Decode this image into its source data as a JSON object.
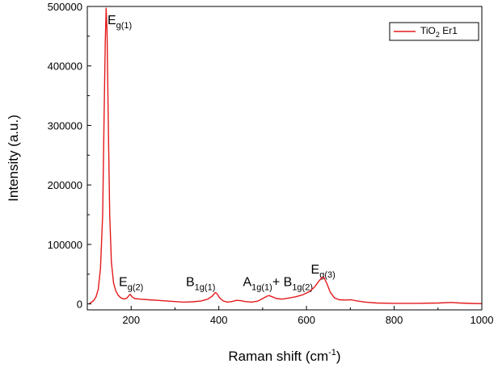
{
  "chart_data": {
    "type": "line",
    "title": "",
    "xlabel": {
      "main": "Raman shift (cm",
      "sup": "-1",
      "tail": ")"
    },
    "ylabel": "Intensity (a.u.)",
    "xlim": [
      100,
      1000
    ],
    "ylim": [
      -10000,
      500000
    ],
    "x_ticks": [
      200,
      400,
      600,
      800,
      1000
    ],
    "x_tick_labels": [
      "200",
      "400",
      "600",
      "800",
      "1000"
    ],
    "y_ticks": [
      0,
      100000,
      200000,
      300000,
      400000,
      500000
    ],
    "y_tick_labels": [
      "0",
      "100000",
      "200000",
      "300000",
      "400000",
      "500000"
    ],
    "legend": {
      "position": "top-right",
      "entries": [
        {
          "main": "TiO",
          "sub": "2",
          "tail": " Er1"
        }
      ]
    },
    "series": [
      {
        "name": "TiO2 Er1",
        "color": "#e41a1c",
        "points": [
          [
            105,
            1000
          ],
          [
            110,
            3000
          ],
          [
            115,
            6000
          ],
          [
            120,
            12000
          ],
          [
            125,
            25000
          ],
          [
            130,
            60000
          ],
          [
            135,
            150000
          ],
          [
            138,
            300000
          ],
          [
            141,
            440000
          ],
          [
            143,
            497000
          ],
          [
            145,
            460000
          ],
          [
            148,
            300000
          ],
          [
            151,
            150000
          ],
          [
            155,
            70000
          ],
          [
            160,
            35000
          ],
          [
            165,
            22000
          ],
          [
            170,
            15000
          ],
          [
            175,
            11000
          ],
          [
            180,
            9000
          ],
          [
            185,
            8500
          ],
          [
            190,
            9500
          ],
          [
            195,
            14000
          ],
          [
            198,
            16000
          ],
          [
            202,
            12000
          ],
          [
            208,
            9000
          ],
          [
            220,
            8000
          ],
          [
            240,
            7000
          ],
          [
            260,
            6000
          ],
          [
            280,
            5000
          ],
          [
            300,
            4000
          ],
          [
            320,
            3000
          ],
          [
            340,
            3500
          ],
          [
            360,
            5000
          ],
          [
            375,
            8000
          ],
          [
            385,
            13000
          ],
          [
            392,
            19000
          ],
          [
            396,
            17000
          ],
          [
            402,
            10000
          ],
          [
            410,
            5000
          ],
          [
            420,
            3000
          ],
          [
            430,
            4000
          ],
          [
            440,
            6000
          ],
          [
            450,
            5500
          ],
          [
            460,
            4000
          ],
          [
            475,
            3000
          ],
          [
            490,
            5000
          ],
          [
            500,
            9000
          ],
          [
            510,
            13000
          ],
          [
            515,
            14000
          ],
          [
            522,
            12000
          ],
          [
            532,
            9000
          ],
          [
            545,
            8000
          ],
          [
            560,
            10000
          ],
          [
            575,
            12000
          ],
          [
            590,
            15000
          ],
          [
            605,
            20000
          ],
          [
            618,
            28000
          ],
          [
            628,
            38000
          ],
          [
            636,
            45000
          ],
          [
            640,
            44000
          ],
          [
            646,
            35000
          ],
          [
            654,
            20000
          ],
          [
            664,
            10000
          ],
          [
            675,
            7000
          ],
          [
            690,
            6500
          ],
          [
            702,
            7000
          ],
          [
            715,
            5000
          ],
          [
            735,
            3000
          ],
          [
            760,
            1500
          ],
          [
            800,
            1000
          ],
          [
            850,
            1000
          ],
          [
            900,
            1500
          ],
          [
            930,
            2500
          ],
          [
            950,
            1500
          ],
          [
            975,
            800
          ],
          [
            1000,
            500
          ]
        ]
      }
    ],
    "annotations": [
      {
        "main": "E",
        "sub": "g(1)",
        "x": 146,
        "y": 470000
      },
      {
        "main": "E",
        "sub": "g(2)",
        "x": 172,
        "y": 30000
      },
      {
        "main": "B",
        "sub": "1g(1)",
        "x": 325,
        "y": 30000
      },
      {
        "main": "A",
        "sub": "1g(1)",
        "x": 455,
        "y": 30000,
        "tail": "+ B",
        "sub2": "1g(2)"
      },
      {
        "main": "E",
        "sub": "g(3)",
        "x": 610,
        "y": 51000
      }
    ]
  }
}
